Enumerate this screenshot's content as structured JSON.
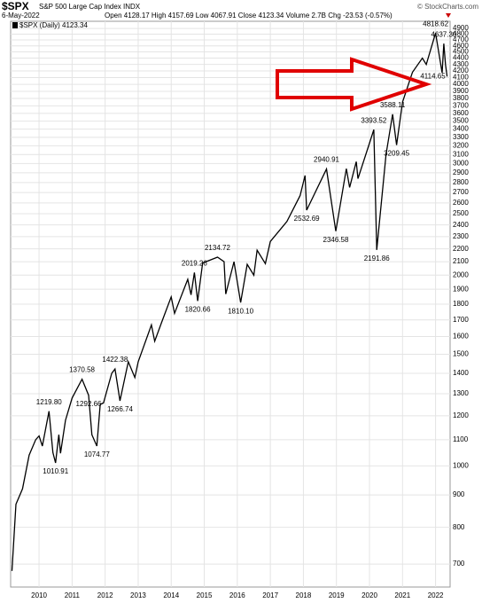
{
  "chart_data": {
    "type": "line",
    "title": "$SPX",
    "subtitle": "S&P 500 Large Cap Index INDX",
    "date": "6-May-2022",
    "quote": "Open 4128.17 High 4157.69 Low 4067.91 Close 4123.34 Volume 2.7B Chg -23.53 (-0.57%)",
    "source": "© StockCharts.com",
    "series": [
      {
        "name": "$SPX (Daily) 4123.34",
        "color": "#000000",
        "x": [
          2009.18,
          2009.3,
          2009.5,
          2009.7,
          2009.9,
          2010.0,
          2010.1,
          2010.3,
          2010.42,
          2010.5,
          2010.6,
          2010.65,
          2010.8,
          2011.0,
          2011.3,
          2011.5,
          2011.6,
          2011.75,
          2011.85,
          2011.95,
          2012.2,
          2012.3,
          2012.45,
          2012.7,
          2012.9,
          2013.0,
          2013.4,
          2013.5,
          2013.7,
          2014.0,
          2014.1,
          2014.5,
          2014.6,
          2014.7,
          2014.8,
          2014.95,
          2015.4,
          2015.6,
          2015.65,
          2015.9,
          2016.1,
          2016.3,
          2016.5,
          2016.6,
          2016.85,
          2017.0,
          2017.5,
          2017.9,
          2018.05,
          2018.1,
          2018.7,
          2018.98,
          2019.3,
          2019.4,
          2019.6,
          2019.65,
          2020.0,
          2020.13,
          2020.22,
          2020.5,
          2020.7,
          2020.82,
          2021.0,
          2021.3,
          2021.6,
          2021.72,
          2022.0,
          2022.2,
          2022.25,
          2022.3,
          2022.35
        ],
        "values": [
          683,
          870,
          920,
          1040,
          1100,
          1115,
          1075,
          1219.8,
          1050,
          1010.91,
          1120,
          1047,
          1180,
          1280,
          1370.58,
          1292.66,
          1120,
          1074.77,
          1250,
          1257,
          1400,
          1422.38,
          1266.74,
          1460,
          1379,
          1460,
          1669,
          1573,
          1680,
          1848,
          1741,
          1970,
          1862,
          2019.26,
          1820.66,
          2090,
          2134.72,
          2100,
          1867,
          2100,
          1810.1,
          2080,
          2000,
          2190,
          2085,
          2260,
          2430,
          2670,
          2872,
          2532.69,
          2940.91,
          2346.58,
          2945,
          2750,
          3020,
          2840,
          3230,
          3393.52,
          2191.86,
          3100,
          3588.11,
          3209.45,
          3750,
          4180,
          4400,
          4300,
          4818.62,
          4170,
          4637.3,
          4300,
          4114.65
        ]
      }
    ],
    "annotations": [
      {
        "x": 2010.3,
        "value": 1219.8,
        "label": "1219.80"
      },
      {
        "x": 2010.5,
        "value": 1010.91,
        "label": "1010.91"
      },
      {
        "x": 2011.3,
        "value": 1370.58,
        "label": "1370.58"
      },
      {
        "x": 2011.5,
        "value": 1292.66,
        "label": "1292.66"
      },
      {
        "x": 2011.75,
        "value": 1074.77,
        "label": "1074.77"
      },
      {
        "x": 2012.45,
        "value": 1266.74,
        "label": "1266.74"
      },
      {
        "x": 2012.3,
        "value": 1422.38,
        "label": "1422.38"
      },
      {
        "x": 2014.7,
        "value": 2019.26,
        "label": "2019.26"
      },
      {
        "x": 2014.8,
        "value": 1820.66,
        "label": "1820.66"
      },
      {
        "x": 2015.4,
        "value": 2134.72,
        "label": "2134.72"
      },
      {
        "x": 2016.1,
        "value": 1810.1,
        "label": "1810.10"
      },
      {
        "x": 2018.1,
        "value": 2532.69,
        "label": "2532.69"
      },
      {
        "x": 2018.7,
        "value": 2940.91,
        "label": "2940.91"
      },
      {
        "x": 2018.98,
        "value": 2346.58,
        "label": "2346.58"
      },
      {
        "x": 2020.13,
        "value": 3393.52,
        "label": "3393.52"
      },
      {
        "x": 2020.22,
        "value": 2191.86,
        "label": "2191.86"
      },
      {
        "x": 2020.7,
        "value": 3588.11,
        "label": "3588.11"
      },
      {
        "x": 2020.82,
        "value": 3209.45,
        "label": "3209.45"
      },
      {
        "x": 2022.35,
        "value": 4114.65,
        "label": "4114.65"
      },
      {
        "x": 2022.0,
        "value": 4818.62,
        "label": "4818.62"
      },
      {
        "x": 2022.25,
        "value": 4637.3,
        "label": "4637.30"
      }
    ],
    "xlim": [
      2009.14,
      2022.44
    ],
    "xticks": [
      2010,
      2011,
      2012,
      2013,
      2014,
      2015,
      2016,
      2017,
      2018,
      2019,
      2020,
      2021,
      2022
    ],
    "ylim": [
      644,
      5030
    ],
    "yscale": "log",
    "yticks": [
      700,
      800,
      900,
      1000,
      1100,
      1200,
      1300,
      1400,
      1500,
      1600,
      1700,
      1800,
      1900,
      2000,
      2100,
      2200,
      2300,
      2400,
      2500,
      2600,
      2700,
      2800,
      2900,
      3000,
      3100,
      3200,
      3300,
      3400,
      3500,
      3600,
      3700,
      3800,
      3900,
      4000,
      4100,
      4200,
      4300,
      4400,
      4500,
      4600,
      4700,
      4800,
      4900
    ],
    "grid": true
  }
}
